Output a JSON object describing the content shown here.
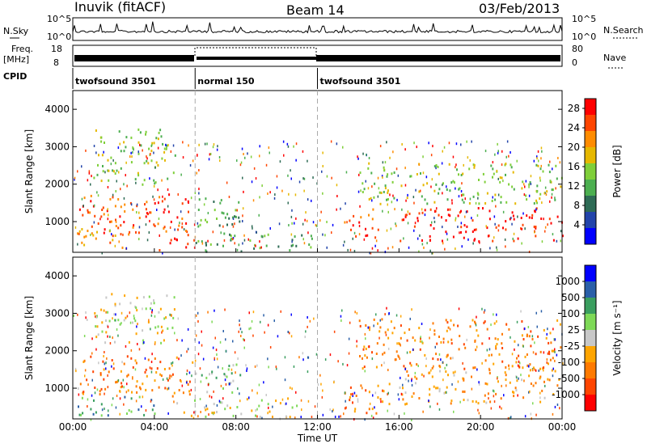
{
  "header": {
    "station": "Inuvik (fitACF)",
    "beam": "Beam 14",
    "date": "03/Feb/2013"
  },
  "labels": {
    "nsky": "N.Sky",
    "nsearch": "N.Search",
    "freq_top": "Freq.",
    "freq_unit": "[MHz]",
    "nave": "Nave",
    "cpid": "CPID",
    "sky_top": "10^5",
    "sky_bottom": "10^0",
    "search_top": "10^5",
    "search_bottom": "10^0",
    "freq_18": "18",
    "freq_8": "8",
    "nave_80": "80",
    "nave_0": "0"
  },
  "modes": [
    {
      "name": "twofsound 3501",
      "start": 0,
      "end": 6
    },
    {
      "name": "normal 150",
      "start": 6,
      "end": 12
    },
    {
      "name": "twofsound 3501",
      "start": 12,
      "end": 24
    }
  ],
  "colors": {
    "power": [
      "#0000ff",
      "#2244aa",
      "#2e6b55",
      "#4caf50",
      "#7fcf3a",
      "#e6b800",
      "#ff8c00",
      "#ff4500",
      "#ff0000"
    ],
    "velocity": [
      "#ff0000",
      "#ff4500",
      "#ff7a00",
      "#ffa500",
      "#c8c8c8",
      "#7ed957",
      "#3a9e5f",
      "#2a5fa8",
      "#0000ff"
    ]
  },
  "chart_data": [
    {
      "type": "heatmap",
      "title": "Power",
      "ylabel": "Slant Range [km]",
      "xlabel": "",
      "x_ticks": [
        "00:00",
        "04:00",
        "08:00",
        "12:00",
        "16:00",
        "20:00",
        "00:00"
      ],
      "y_ticks": [
        "1000",
        "2000",
        "3000",
        "4000"
      ],
      "ylim": [
        180,
        4500
      ],
      "colorbar_label": "Power [dB]",
      "colorbar_ticks": [
        "4",
        "8",
        "12",
        "16",
        "20",
        "24",
        "28"
      ],
      "colorbar_range": [
        0,
        30
      ],
      "mode_boundaries_ut": [
        6,
        12
      ],
      "scatter_regions": [
        {
          "x": [
            0.2,
            6.0
          ],
          "y": [
            700,
            1800
          ],
          "level": 7
        },
        {
          "x": [
            0.2,
            3.0
          ],
          "y": [
            300,
            900
          ],
          "level": 6
        },
        {
          "x": [
            4.0,
            6.0
          ],
          "y": [
            250,
            700
          ],
          "level": 8
        },
        {
          "x": [
            6.0,
            8.3
          ],
          "y": [
            700,
            1700
          ],
          "level": 3
        },
        {
          "x": [
            6.0,
            12.0
          ],
          "y": [
            200,
            700
          ],
          "level": 3
        },
        {
          "x": [
            13.3,
            15.0
          ],
          "y": [
            600,
            1400
          ],
          "level": 7
        },
        {
          "x": [
            16.0,
            24.0
          ],
          "y": [
            500,
            1400
          ],
          "level": 8
        },
        {
          "x": [
            14.0,
            24.0
          ],
          "y": [
            1500,
            2600
          ],
          "level": 4
        },
        {
          "x": [
            1.0,
            5.0
          ],
          "y": [
            2000,
            3500
          ],
          "level": 4
        }
      ]
    },
    {
      "type": "heatmap",
      "title": "Velocity",
      "ylabel": "Slant Range [km]",
      "xlabel": "Time UT",
      "x_ticks": [
        "00:00",
        "04:00",
        "08:00",
        "12:00",
        "16:00",
        "20:00",
        "00:00"
      ],
      "y_ticks": [
        "1000",
        "2000",
        "3000",
        "4000"
      ],
      "ylim": [
        180,
        4500
      ],
      "colorbar_label": "Velocity [m s⁻¹]",
      "colorbar_ticks": [
        "1000",
        "500",
        "100",
        "25",
        "-25",
        "-100",
        "-500",
        "-1000"
      ],
      "mode_boundaries_ut": [
        6,
        12
      ],
      "scatter_regions": [
        {
          "x": [
            0.2,
            6.0
          ],
          "y": [
            800,
            1900
          ],
          "level": 2
        },
        {
          "x": [
            0.2,
            4.0
          ],
          "y": [
            300,
            800
          ],
          "level": 6
        },
        {
          "x": [
            6.0,
            8.3
          ],
          "y": [
            900,
            1700
          ],
          "level": 5
        },
        {
          "x": [
            5.0,
            11.0
          ],
          "y": [
            250,
            800
          ],
          "level": 4
        },
        {
          "x": [
            13.3,
            15.5
          ],
          "y": [
            300,
            1200
          ],
          "level": 2
        },
        {
          "x": [
            16.0,
            24.0
          ],
          "y": [
            600,
            1500
          ],
          "level": 3
        },
        {
          "x": [
            14.0,
            24.0
          ],
          "y": [
            1500,
            2900
          ],
          "level": 2
        },
        {
          "x": [
            1.0,
            5.0
          ],
          "y": [
            2200,
            3600
          ],
          "level": 4
        }
      ]
    }
  ]
}
